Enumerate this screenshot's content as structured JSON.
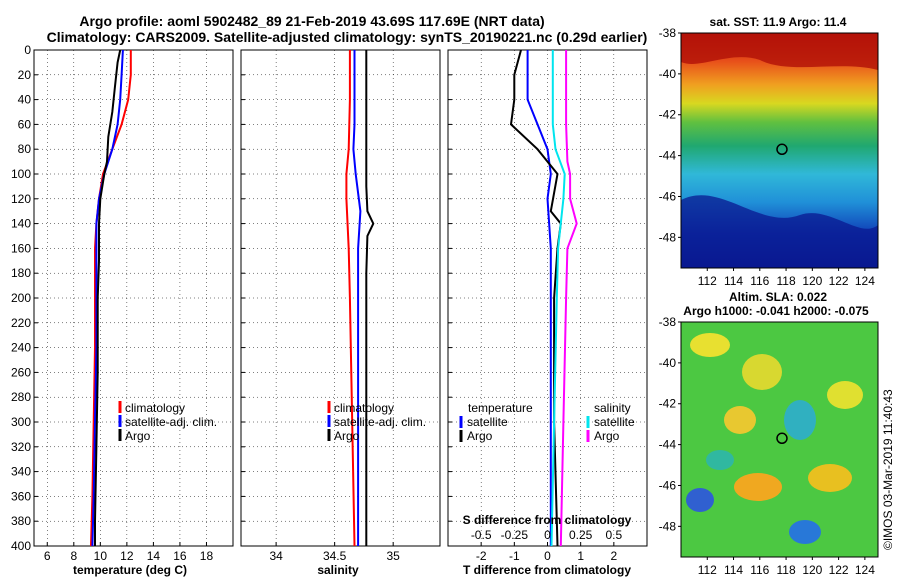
{
  "header": {
    "title_line1": "Argo profile: aoml 5902482_89 21-Feb-2019 43.69S 117.69E (NRT data)",
    "title_line2": "Climatology: CARS2009. Satellite-adjusted climatology: synTS_20190221.nc (0.29d earlier)"
  },
  "colors": {
    "climatology": "#ff0000",
    "satellite": "#0000ff",
    "argo": "#000000",
    "sal_satellite": "#00e5ee",
    "sal_argo": "#ff00ff"
  },
  "chart_data": [
    {
      "type": "line",
      "name": "temperature-panel",
      "xlabel": "temperature (deg C)",
      "ylabel": "",
      "xlim": [
        5,
        20
      ],
      "ylim": [
        400,
        0
      ],
      "xticks": [
        "6",
        "8",
        "10",
        "12",
        "14",
        "16",
        "18"
      ],
      "yticks": [
        "0",
        "20",
        "40",
        "60",
        "80",
        "100",
        "120",
        "140",
        "160",
        "180",
        "200",
        "220",
        "240",
        "260",
        "280",
        "300",
        "320",
        "340",
        "360",
        "380",
        "400"
      ],
      "legend": [
        "climatology",
        "satellite-adj. clim.",
        "Argo"
      ],
      "series": [
        {
          "name": "climatology",
          "depth": [
            0,
            20,
            40,
            60,
            80,
            100,
            120,
            140,
            160,
            200,
            240,
            300,
            360,
            400
          ],
          "values": [
            12.3,
            12.3,
            12.1,
            11.6,
            10.9,
            10.2,
            9.9,
            9.7,
            9.6,
            9.6,
            9.6,
            9.5,
            9.4,
            9.3
          ]
        },
        {
          "name": "satellite-adj. clim.",
          "depth": [
            0,
            20,
            40,
            60,
            80,
            100,
            120,
            140,
            160,
            200,
            240,
            300,
            360,
            400
          ],
          "values": [
            11.7,
            11.6,
            11.5,
            11.3,
            10.9,
            10.3,
            9.9,
            9.7,
            9.7,
            9.7,
            9.7,
            9.6,
            9.5,
            9.4
          ]
        },
        {
          "name": "Argo",
          "depth": [
            0,
            10,
            30,
            50,
            70,
            90,
            100,
            120,
            140,
            170,
            200,
            260,
            320,
            380,
            400
          ],
          "values": [
            11.5,
            11.3,
            11.1,
            10.9,
            10.6,
            10.5,
            10.3,
            10.0,
            9.9,
            9.9,
            9.8,
            9.8,
            9.7,
            9.6,
            9.6
          ]
        }
      ]
    },
    {
      "type": "line",
      "name": "salinity-panel",
      "xlabel": "salinity",
      "xlim": [
        33.7,
        35.4
      ],
      "ylim": [
        400,
        0
      ],
      "xticks": [
        "34",
        "34.5",
        "35"
      ],
      "legend": [
        "climatology",
        "satellite-adj. clim.",
        "Argo"
      ],
      "series": [
        {
          "name": "climatology",
          "depth": [
            0,
            40,
            80,
            100,
            120,
            160,
            200,
            300,
            400
          ],
          "values": [
            34.63,
            34.63,
            34.62,
            34.6,
            34.6,
            34.62,
            34.63,
            34.65,
            34.67
          ]
        },
        {
          "name": "satellite-adj. clim.",
          "depth": [
            0,
            60,
            80,
            100,
            130,
            160,
            200,
            300,
            400
          ],
          "values": [
            34.67,
            34.67,
            34.66,
            34.68,
            34.72,
            34.7,
            34.7,
            34.7,
            34.7
          ]
        },
        {
          "name": "Argo",
          "depth": [
            0,
            60,
            90,
            110,
            130,
            140,
            150,
            180,
            260,
            320,
            400
          ],
          "values": [
            34.77,
            34.77,
            34.77,
            34.77,
            34.78,
            34.83,
            34.78,
            34.77,
            34.77,
            34.77,
            34.77
          ]
        }
      ]
    },
    {
      "type": "line",
      "name": "difference-panel",
      "xlabel": "T difference from climatology",
      "xlim": [
        -3,
        3
      ],
      "ylim": [
        400,
        0
      ],
      "xticks": [
        "-2",
        "-1",
        "0",
        "1",
        "2"
      ],
      "top_label": "S difference from climatology",
      "top_ticks": [
        "-0.5",
        "-0.25",
        "0",
        "0.25",
        "0.5"
      ],
      "legend_titles": [
        "temperature",
        "salinity"
      ],
      "legend_left": [
        "satellite",
        "Argo"
      ],
      "legend_right": [
        "satellite",
        "Argo"
      ],
      "series": [
        {
          "name": "temperature satellite",
          "depth": [
            0,
            40,
            80,
            100,
            120,
            160,
            200,
            300,
            400
          ],
          "values": [
            -0.6,
            -0.6,
            0.0,
            0.1,
            0.0,
            0.1,
            0.1,
            0.1,
            0.1
          ]
        },
        {
          "name": "temperature Argo",
          "depth": [
            0,
            20,
            40,
            60,
            80,
            100,
            130,
            140,
            160,
            200,
            300,
            400
          ],
          "values": [
            -0.8,
            -1.0,
            -1.0,
            -1.1,
            -0.3,
            0.3,
            0.1,
            0.4,
            0.3,
            0.2,
            0.2,
            0.3
          ]
        },
        {
          "name": "salinity satellite",
          "depth": [
            0,
            60,
            80,
            100,
            120,
            160,
            200,
            300,
            400
          ],
          "values": [
            0.04,
            0.04,
            0.06,
            0.13,
            0.12,
            0.08,
            0.07,
            0.05,
            0.03
          ]
        },
        {
          "name": "salinity Argo",
          "depth": [
            0,
            60,
            90,
            100,
            120,
            140,
            160,
            200,
            300,
            400
          ],
          "values": [
            0.14,
            0.14,
            0.15,
            0.17,
            0.17,
            0.22,
            0.15,
            0.14,
            0.12,
            0.1
          ]
        }
      ]
    },
    {
      "type": "heatmap",
      "name": "sst-map",
      "title": "sat. SST: 11.9 Argo: 11.4",
      "xlim": [
        110,
        125
      ],
      "ylim": [
        -49.5,
        -38
      ],
      "xticks": [
        "112",
        "114",
        "116",
        "118",
        "120",
        "122",
        "124"
      ],
      "yticks": [
        "-38",
        "-40",
        "-42",
        "-44",
        "-46",
        "-48"
      ],
      "marker": {
        "lon": 117.69,
        "lat": -43.69
      }
    },
    {
      "type": "heatmap",
      "name": "sla-map",
      "title_line1": "Altim. SLA: 0.022",
      "title_line2": "Argo h1000: -0.041 h2000: -0.075",
      "xlim": [
        110,
        125
      ],
      "ylim": [
        -49.5,
        -38
      ],
      "xticks": [
        "112",
        "114",
        "116",
        "118",
        "120",
        "122",
        "124"
      ],
      "yticks": [
        "-38",
        "-40",
        "-42",
        "-44",
        "-46",
        "-48"
      ],
      "marker": {
        "lon": 117.69,
        "lat": -43.69
      }
    }
  ],
  "credit": "©IMOS 03-Mar-2019 11:40:43"
}
